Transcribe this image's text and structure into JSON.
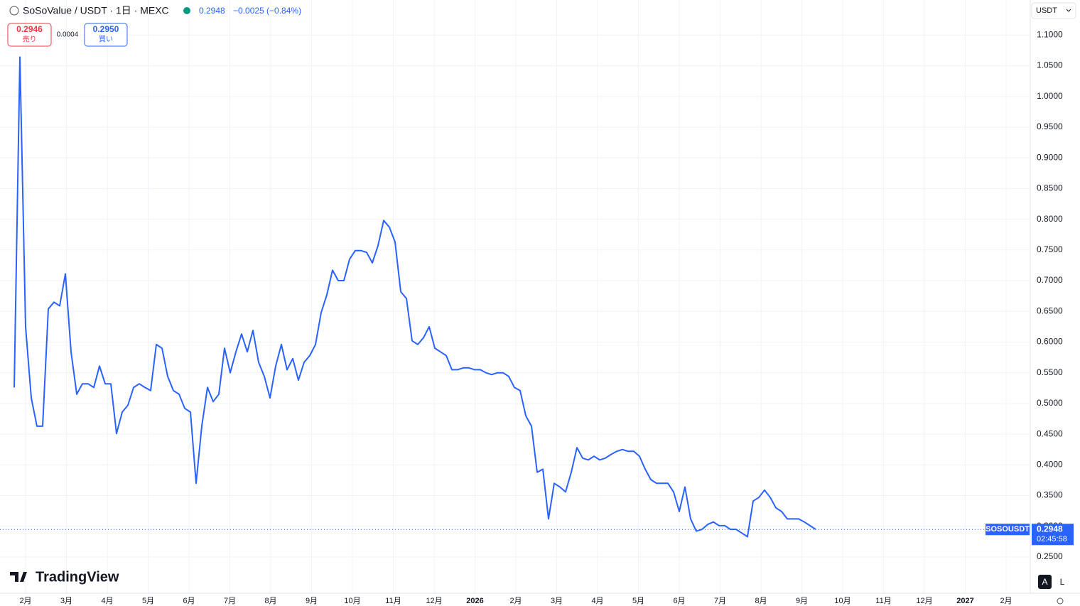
{
  "header": {
    "symbol": "SoSoValue / USDT · 1日 · MEXC",
    "last": "0.2948",
    "change": "−0.0025 (−0.84%)"
  },
  "order": {
    "sell_price": "0.2946",
    "sell_label": "売り",
    "spread": "0.0004",
    "buy_price": "0.2950",
    "buy_label": "買い"
  },
  "currency": "USDT",
  "brand": "TradingView",
  "buttons": [
    "A",
    "L"
  ],
  "chart_data": {
    "type": "line",
    "series": [
      {
        "name": "SOSOUSDT",
        "color": "#2962ff",
        "values": [
          0.526,
          1.064,
          0.625,
          0.509,
          0.463,
          0.463,
          0.654,
          0.665,
          0.659,
          0.711,
          0.584,
          0.515,
          0.532,
          0.532,
          0.526,
          0.561,
          0.532,
          0.532,
          0.451,
          0.486,
          0.497,
          0.526,
          0.532,
          0.526,
          0.521,
          0.596,
          0.59,
          0.544,
          0.521,
          0.515,
          0.492,
          0.486,
          0.37,
          0.463,
          0.526,
          0.503,
          0.515,
          0.59,
          0.55,
          0.584,
          0.613,
          0.584,
          0.619,
          0.567,
          0.544,
          0.509,
          0.561,
          0.596,
          0.555,
          0.573,
          0.538,
          0.567,
          0.578,
          0.596,
          0.648,
          0.677,
          0.717,
          0.7,
          0.7,
          0.735,
          0.749,
          0.749,
          0.746,
          0.729,
          0.757,
          0.798,
          0.787,
          0.763,
          0.682,
          0.671,
          0.602,
          0.596,
          0.607,
          0.625,
          0.59,
          0.584,
          0.578,
          0.555,
          0.555,
          0.558,
          0.558,
          0.555,
          0.555,
          0.55,
          0.547,
          0.55,
          0.55,
          0.544,
          0.526,
          0.521,
          0.48,
          0.463,
          0.388,
          0.393,
          0.312,
          0.37,
          0.364,
          0.356,
          0.388,
          0.428,
          0.411,
          0.408,
          0.414,
          0.408,
          0.411,
          0.417,
          0.422,
          0.425,
          0.422,
          0.422,
          0.414,
          0.393,
          0.376,
          0.37,
          0.37,
          0.37,
          0.356,
          0.324,
          0.364,
          0.312,
          0.292,
          0.295,
          0.303,
          0.307,
          0.301,
          0.301,
          0.295,
          0.295,
          0.289,
          0.283,
          0.341,
          0.347,
          0.359,
          0.347,
          0.33,
          0.324,
          0.312,
          0.312,
          0.312,
          0.307,
          0.301,
          0.295
        ]
      }
    ],
    "ylim": [
      0.191,
      1.157
    ],
    "yticks": [
      {
        "value": 1.1,
        "label": "1.1000"
      },
      {
        "value": 1.05,
        "label": "1.0500"
      },
      {
        "value": 1.0,
        "label": "1.0000"
      },
      {
        "value": 0.95,
        "label": "0.9500"
      },
      {
        "value": 0.9,
        "label": "0.9000"
      },
      {
        "value": 0.85,
        "label": "0.8500"
      },
      {
        "value": 0.8,
        "label": "0.8000"
      },
      {
        "value": 0.75,
        "label": "0.7500"
      },
      {
        "value": 0.7,
        "label": "0.7000"
      },
      {
        "value": 0.65,
        "label": "0.6500"
      },
      {
        "value": 0.6,
        "label": "0.6000"
      },
      {
        "value": 0.55,
        "label": "0.5500"
      },
      {
        "value": 0.5,
        "label": "0.5000"
      },
      {
        "value": 0.45,
        "label": "0.4500"
      },
      {
        "value": 0.4,
        "label": "0.4000"
      },
      {
        "value": 0.35,
        "label": "0.3500"
      },
      {
        "value": 0.3,
        "label": "0.3000"
      },
      {
        "value": 0.25,
        "label": "0.2500"
      }
    ],
    "x_labels": [
      "2月",
      "3月",
      "4月",
      "5月",
      "6月",
      "7月",
      "8月",
      "9月",
      "10月",
      "11月",
      "12月",
      "2026",
      "2月",
      "3月",
      "4月",
      "5月",
      "6月",
      "7月",
      "8月",
      "9月",
      "10月",
      "11月",
      "12月",
      "2027",
      "2月"
    ],
    "last_price": 0.2948,
    "countdown": "02:45:58",
    "grid": true
  }
}
